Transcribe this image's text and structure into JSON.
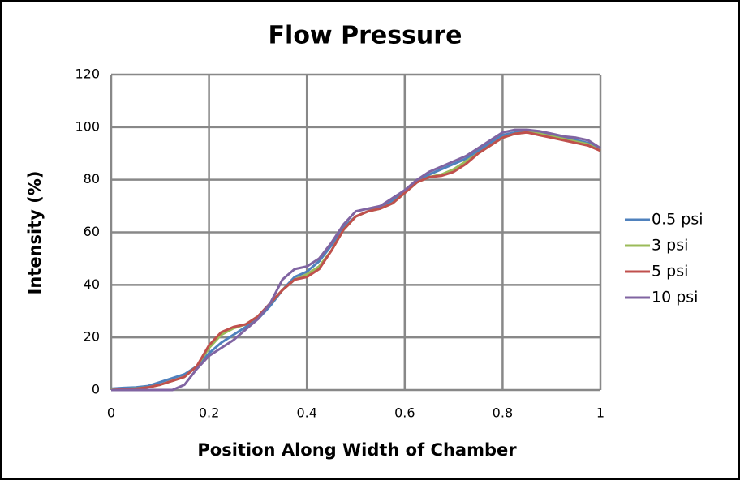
{
  "chart_data": {
    "type": "line",
    "title": "Flow Pressure",
    "x_label": "Position Along Width of Chamber",
    "y_label": "Intensity (%)",
    "x": [
      0,
      0.025,
      0.05,
      0.075,
      0.1,
      0.125,
      0.15,
      0.175,
      0.2,
      0.225,
      0.25,
      0.275,
      0.3,
      0.325,
      0.35,
      0.375,
      0.4,
      0.425,
      0.45,
      0.475,
      0.5,
      0.525,
      0.55,
      0.575,
      0.6,
      0.625,
      0.65,
      0.675,
      0.7,
      0.725,
      0.75,
      0.775,
      0.8,
      0.825,
      0.85,
      0.875,
      0.9,
      0.925,
      0.95,
      0.975,
      1
    ],
    "series": [
      {
        "name": "0.5 psi",
        "color": "#4f81bd",
        "values": [
          0.5,
          0.8,
          1,
          1.5,
          3,
          4.5,
          6,
          9,
          14,
          18,
          21,
          24,
          27,
          32,
          38,
          43,
          45,
          49,
          55,
          62,
          66,
          68,
          70,
          72,
          76,
          79,
          82,
          84,
          86,
          88,
          91,
          94,
          97,
          98,
          98.5,
          98,
          97,
          96,
          95,
          94,
          92
        ]
      },
      {
        "name": "3 psi",
        "color": "#9bbb59",
        "values": [
          0.2,
          0.4,
          0.6,
          1,
          2,
          3.5,
          5,
          9,
          16,
          21,
          23.5,
          25,
          28,
          33,
          38,
          42,
          44,
          47,
          53,
          61,
          66,
          68,
          69,
          71,
          75,
          79,
          81,
          82,
          84,
          87,
          90,
          93,
          96,
          97.5,
          98,
          97.5,
          96.5,
          95.5,
          94.5,
          93.5,
          91
        ]
      },
      {
        "name": "5 psi",
        "color": "#c0504d",
        "values": [
          0,
          0.3,
          0.5,
          1,
          2,
          3.5,
          5,
          9,
          17,
          22,
          24,
          25,
          28,
          33,
          38,
          42,
          43,
          46,
          53,
          61,
          66,
          68,
          69,
          71,
          75,
          79,
          81,
          81.5,
          83,
          86,
          90,
          93,
          96,
          97.5,
          98,
          97,
          96,
          95,
          94,
          93,
          91
        ]
      },
      {
        "name": "10 psi",
        "color": "#8064a2",
        "values": [
          0,
          0,
          0,
          0,
          0,
          0,
          2,
          8,
          13,
          16,
          19,
          23,
          27,
          33,
          42,
          46,
          47,
          50,
          56,
          63,
          68,
          69,
          70,
          73,
          76,
          80,
          83,
          85,
          87,
          89,
          92,
          95,
          98,
          99,
          99,
          98.5,
          97.5,
          96.5,
          96,
          95,
          92
        ]
      }
    ],
    "xlim": [
      0,
      1
    ],
    "xticks": [
      0,
      0.2,
      0.4,
      0.6,
      0.8,
      1
    ],
    "ylim": [
      0,
      120
    ],
    "yticks": [
      0,
      20,
      40,
      60,
      80,
      100,
      120
    ],
    "grid": true,
    "legend": "right"
  }
}
